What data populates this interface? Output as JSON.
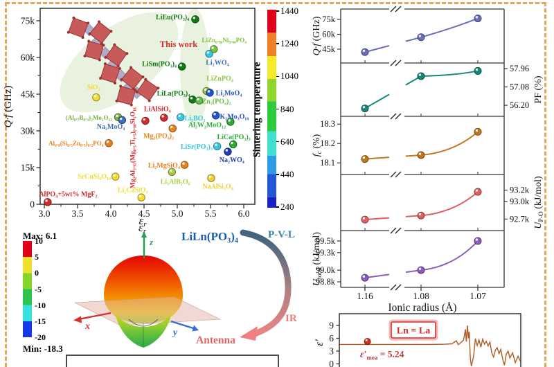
{
  "figure": {
    "border_color": "#E8A35C",
    "background": "#FFFFFF"
  },
  "pattern3d": {
    "max_label": "Max: 6.1",
    "min_label": "Min: -18.3",
    "colorbar_ticks": [
      "10",
      "5",
      "0",
      "-5",
      "-10",
      "-15",
      "-20"
    ],
    "colorbar_colors": [
      "#E3001B",
      "#F0E22A",
      "#86D32A",
      "#2EC54E",
      "#35E0DE",
      "#1638E8"
    ],
    "er_main": "ε",
    "er_sub": "r",
    "axis_x": "x",
    "axis_y": "y",
    "axis_z": "z",
    "compound": "LiLn(PO₃)₄",
    "pvl_label": "P-V-L",
    "ir_label": "IR",
    "antenna_label": "Antenna",
    "compound_color": "#1A5FAE",
    "pvl_color": "#3D7FA6",
    "ir_color": "#ED7D7D",
    "antenna_color": "#E06565"
  },
  "chart_data": [
    {
      "id": "materials_scatter",
      "type": "scatter",
      "xlabel_main": "ε",
      "xlabel_sub": "r",
      "ylabel_main": "Q·f",
      "ylabel_rest": " (GHz)",
      "xlim": [
        2.95,
        6.15
      ],
      "ylim": [
        0,
        80000
      ],
      "xticks": [
        "3.0",
        "3.5",
        "4.0",
        "4.5",
        "5.0",
        "5.5",
        "6.0"
      ],
      "yticks": [
        "0",
        "15k",
        "30k",
        "45k",
        "60k",
        "75k"
      ],
      "annotation": "This work",
      "annotation_color": "#D43030",
      "colorbar": {
        "label": "Sintering temperature",
        "ticks": [
          "1440",
          "1240",
          "1040",
          "840",
          "640",
          "440",
          "240"
        ],
        "colors": [
          "#E3001B",
          "#F07E26",
          "#F5EA2A",
          "#8FD52E",
          "#2FCB3F",
          "#3FE0D0",
          "#2E9BE6",
          "#2457D6",
          "#1B1FC8"
        ],
        "stops": [
          0,
          0.116,
          0.235,
          0.35,
          0.463,
          0.614,
          0.737,
          0.83,
          0.947,
          1
        ]
      },
      "points": [
        {
          "label": "LiEu(PO₃)₄",
          "x": 5.27,
          "y": 75600,
          "color": "#0E7A12",
          "lx": 5.18,
          "ly": 76500,
          "anchor": "end"
        },
        {
          "label": "LiSm(PO₃)₄",
          "x": 5.07,
          "y": 56300,
          "color": "#0E7A12",
          "lx": 4.99,
          "ly": 57500,
          "anchor": "end"
        },
        {
          "label": "LiLa(PO₃)₄",
          "x": 5.23,
          "y": 42800,
          "color": "#0E7A12",
          "lx": 5.19,
          "ly": 45400,
          "anchor": "end"
        },
        {
          "label": "LiZn₀.₉₆Ni₀.₀₄PO₄",
          "x": 5.55,
          "y": 63400,
          "color": "#7CC43C",
          "lx": 5.37,
          "ly": 67200,
          "anchor": "start",
          "fs": 9
        },
        {
          "label": "Li₂WO₄",
          "x": 5.48,
          "y": 61500,
          "color": "#35C8E0",
          "tc": "#3E6FB5",
          "lx": 5.43,
          "ly": 58000,
          "anchor": "start"
        },
        {
          "label": "LiZnPO₄",
          "x": 5.44,
          "y": 46300,
          "color": "#8CC63F",
          "tc": "#8CC63F",
          "lx": 5.44,
          "ly": 51500,
          "anchor": "start"
        },
        {
          "label": "Li₂MoO₄",
          "x": 5.49,
          "y": 45600,
          "color": "#2255CC",
          "lx": 5.58,
          "ly": 45600,
          "anchor": "start"
        },
        {
          "label": "SiO₂",
          "x": 3.78,
          "y": 43700,
          "color": "#F2DC2E",
          "lx": 3.74,
          "ly": 48000,
          "anchor": "middle"
        },
        {
          "label": "Zn₃(PO₄)₂",
          "x": 5.33,
          "y": 42400,
          "color": "#62BE4A",
          "lx": 5.37,
          "ly": 42200,
          "anchor": "start"
        },
        {
          "label": "K₂Mo₃O₁₀",
          "x": 5.58,
          "y": 36300,
          "color": "#2255CC",
          "lx": 5.64,
          "ly": 36000,
          "anchor": "start"
        },
        {
          "label": "Li₃BO₃",
          "x": 5.05,
          "y": 35600,
          "color": "#35C8E0",
          "lx": 5.11,
          "ly": 35300,
          "anchor": "start"
        },
        {
          "label": "LiAlSiO₄",
          "x": 4.8,
          "y": 35400,
          "color": "#D42A2A",
          "lx": 4.7,
          "ly": 39000,
          "anchor": "middle"
        },
        {
          "label": "(Al₀.₇B₀.₃)₂Mo₃O₁₂",
          "x": 4.11,
          "y": 35600,
          "color": "#7CB342",
          "lx": 4.02,
          "ly": 35500,
          "anchor": "end",
          "fs": 9
        },
        {
          "label": "Na₂MoO₄",
          "x": 4.17,
          "y": 34400,
          "color": "#3E6FB5",
          "lx": 4.0,
          "ly": 31800,
          "anchor": "middle"
        },
        {
          "label": "Mg₂Al₃.₉₂(Mg₀.₅Ti₀.₅)₀.₀₈Si₅O₁₈",
          "x": 4.52,
          "y": 34100,
          "color": "#D42A2A",
          "lx": 4.36,
          "ly": 24000,
          "anchor": "middle",
          "rot": -90,
          "fs": 9.5
        },
        {
          "label": "Al₂W₂MoO₁₂",
          "x": 5.8,
          "y": 33700,
          "color": "#2EA836",
          "lx": 5.73,
          "ly": 32600,
          "anchor": "end"
        },
        {
          "label": "Mg₃(PO₄)₂",
          "x": 4.93,
          "y": 31000,
          "color": "#E8821E",
          "lx": 4.72,
          "ly": 28000,
          "anchor": "middle"
        },
        {
          "label": "Al₀.₈(Si₀.₅Zn₀.₅)₀.₂PO₄",
          "x": 3.97,
          "y": 25000,
          "color": "#E8821E",
          "lx": 3.89,
          "ly": 25000,
          "anchor": "end",
          "fs": 9
        },
        {
          "label": "LiCa(PO₃)₃",
          "x": 5.84,
          "y": 24500,
          "color": "#2EA836",
          "lx": 5.85,
          "ly": 27600,
          "anchor": "middle"
        },
        {
          "label": "LiSr(PO₃)₃",
          "x": 5.6,
          "y": 23700,
          "color": "#35C8E0",
          "lx": 5.53,
          "ly": 23600,
          "anchor": "end"
        },
        {
          "label": "Na₂WO₄",
          "x": 5.76,
          "y": 21500,
          "color": "#1F3FB5",
          "lx": 5.82,
          "ly": 18200,
          "anchor": "middle"
        },
        {
          "label": "Li₂MgSiO₄",
          "x": 5.11,
          "y": 16100,
          "color": "#E8821E",
          "lx": 5.04,
          "ly": 16000,
          "anchor": "end"
        },
        {
          "label": "Li₃AlB₂O₆",
          "x": 4.92,
          "y": 13200,
          "color": "#AACF45",
          "lx": 4.97,
          "ly": 9400,
          "anchor": "middle"
        },
        {
          "label": "SrCuSi₄O₁₀",
          "x": 4.07,
          "y": 11300,
          "color": "#F2DC2E",
          "lx": 4.0,
          "ly": 11400,
          "anchor": "end"
        },
        {
          "label": "NaAlSi₃O₈",
          "x": 5.51,
          "y": 10700,
          "color": "#EDD12E",
          "lx": 5.61,
          "ly": 7400,
          "anchor": "middle"
        },
        {
          "label": "Li₂CaSiO₄",
          "x": 4.46,
          "y": 2800,
          "color": "#F2DC2E",
          "lx": 4.33,
          "ly": 5900,
          "anchor": "middle"
        },
        {
          "label": "AlPO₄+5wt% MgF₂",
          "x": 3.05,
          "y": 900,
          "color": "#D42A2A",
          "lx": 2.92,
          "ly": 4300,
          "anchor": "start"
        }
      ]
    },
    {
      "id": "ionic_radius_trends",
      "type": "line",
      "xlabel": "Ionic radius (Å)",
      "x": [
        1.16,
        1.08,
        1.07
      ],
      "xticks": [
        "1.16",
        "1.08",
        "1.07"
      ],
      "panels": [
        {
          "label_main": "Q·f",
          "label_sub": "",
          "label_rest": " (GHz)",
          "italic": true,
          "side": "left",
          "ticks": [
            {
              "v": 45000,
              "t": "45k"
            },
            {
              "v": 60000,
              "t": "60k"
            },
            {
              "v": 75000,
              "t": "75k"
            }
          ],
          "values": [
            42000,
            57000,
            76000
          ],
          "ylim": [
            31000,
            85500
          ],
          "color": "#6B6FB8"
        },
        {
          "label_main": "PF",
          "label_sub": "",
          "label_rest": " (%)",
          "italic": false,
          "side": "right",
          "ticks": [
            {
              "v": 56.2,
              "t": "56.20"
            },
            {
              "v": 57.08,
              "t": "57.08"
            },
            {
              "v": 57.96,
              "t": "57.96"
            }
          ],
          "values": [
            56.05,
            57.6,
            57.85
          ],
          "ylim": [
            55.67,
            58.23
          ],
          "color": "#148878"
        },
        {
          "label_main": "f",
          "label_sub": "c",
          "label_rest": " (%)",
          "italic": true,
          "side": "left",
          "ticks": [
            {
              "v": 18.1,
              "t": "18.1"
            },
            {
              "v": 18.2,
              "t": "18.2"
            },
            {
              "v": 18.3,
              "t": "18.3"
            }
          ],
          "values": [
            18.12,
            18.14,
            18.26
          ],
          "ylim": [
            18.04,
            18.34
          ],
          "color": "#C07820"
        },
        {
          "label_main": "U",
          "label_sub": "P-O",
          "label_rest": " (kJ/mol)",
          "italic": true,
          "side": "right",
          "ticks": [
            {
              "v": 92700,
              "t": "92.7k"
            },
            {
              "v": 93000,
              "t": "93.0k"
            },
            {
              "v": 93200,
              "t": "93.2k"
            }
          ],
          "values": [
            92690,
            92760,
            93170
          ],
          "ylim": [
            92500,
            93470
          ],
          "color": "#E05F5F"
        },
        {
          "label_main": "U",
          "label_sub": "total",
          "label_rest": " (kJ/mol)",
          "italic": true,
          "side": "left",
          "ticks": [
            {
              "v": 98800,
              "t": "98.8k"
            },
            {
              "v": 99000,
              "t": "99.0k"
            },
            {
              "v": 99300,
              "t": "99.3k"
            },
            {
              "v": 99500,
              "t": "99.5k"
            }
          ],
          "values": [
            98870,
            99000,
            99500
          ],
          "ylim": [
            98705,
            99678
          ],
          "color": "#8A5BB8"
        }
      ]
    },
    {
      "id": "permittivity_spectrum",
      "type": "line",
      "ylabel": "ε′",
      "yticks": [
        {
          "v": 9,
          "t": "9"
        },
        {
          "v": 6,
          "t": "6"
        },
        {
          "v": 3,
          "t": "3"
        },
        {
          "v": 0,
          "t": "0"
        }
      ],
      "box_label": "Ln = La",
      "box_color": "#D43030",
      "mea_main": "ε′",
      "mea_sub": "mea",
      "mea_rest": " = 5.24",
      "point": {
        "x": 0.155,
        "y": 5.24
      },
      "point_color": "#D8281E",
      "line_color": "#AD5B22",
      "trace": [
        [
          0,
          4.55
        ],
        [
          0.3,
          4.55
        ],
        [
          0.5,
          4.55
        ],
        [
          0.58,
          4.6
        ],
        [
          0.62,
          4.7
        ],
        [
          0.645,
          5.4
        ],
        [
          0.655,
          4.5
        ],
        [
          0.665,
          4.8
        ],
        [
          0.685,
          5.6
        ],
        [
          0.695,
          8.1
        ],
        [
          0.7,
          5.2
        ],
        [
          0.706,
          9.0
        ],
        [
          0.712,
          6.0
        ],
        [
          0.716,
          7.5
        ],
        [
          0.722,
          1.2
        ],
        [
          0.728,
          -0.5
        ],
        [
          0.74,
          1.8
        ],
        [
          0.75,
          5.9
        ],
        [
          0.76,
          4.3
        ],
        [
          0.77,
          5.6
        ],
        [
          0.78,
          3.9
        ],
        [
          0.79,
          5.8
        ],
        [
          0.8,
          4.6
        ],
        [
          0.81,
          5.3
        ],
        [
          0.82,
          4.2
        ],
        [
          0.83,
          5.1
        ],
        [
          0.84,
          2.6
        ],
        [
          0.85,
          1.6
        ],
        [
          0.86,
          3.2
        ],
        [
          0.87,
          3.8
        ],
        [
          0.88,
          2.4
        ],
        [
          0.89,
          3.4
        ],
        [
          0.9,
          1.2
        ],
        [
          0.91,
          -0.3
        ],
        [
          0.92,
          2.2
        ],
        [
          0.93,
          3.0
        ],
        [
          0.94,
          1.4
        ],
        [
          0.955,
          2.6
        ],
        [
          0.97,
          0.3
        ],
        [
          0.985,
          1.8
        ],
        [
          1.0,
          0.4
        ]
      ]
    }
  ]
}
